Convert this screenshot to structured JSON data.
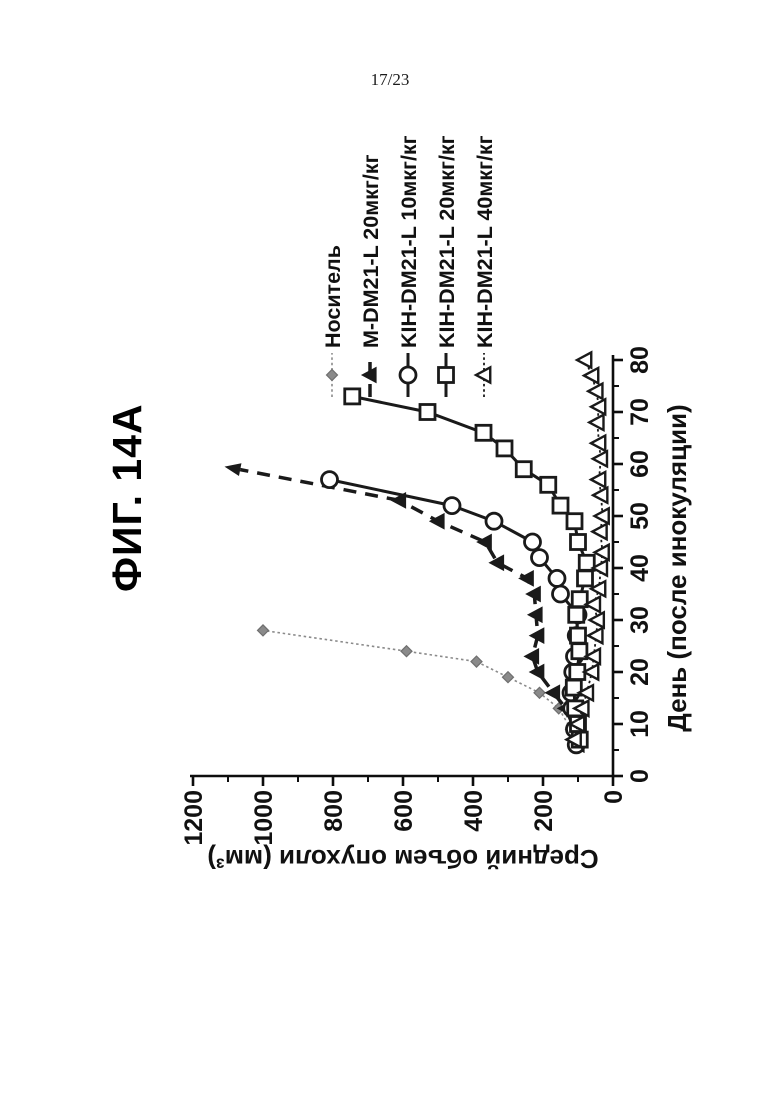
{
  "page": {
    "number": "17/23"
  },
  "figure": {
    "title": "ФИГ. 14А"
  },
  "chart_data": {
    "type": "line",
    "title": "ФИГ. 14А",
    "xlabel": "День (после инокуляции)",
    "ylabel": "Средний объем опухоли (мм³)",
    "xlim": [
      0,
      80
    ],
    "ylim": [
      0,
      1200
    ],
    "xtick_major": 10,
    "xtick_minor": 5,
    "ytick_major": 200,
    "ytick_minor": 100,
    "grid": false,
    "legend_position": "top-right",
    "orientation": "figure rotated 90 degrees counterclockwise on page",
    "series": [
      {
        "name": "Носитель",
        "marker": "diamond",
        "marker_fill": "filled",
        "color": "#8a8a8a",
        "line": "dotted",
        "line_width": 1.6,
        "x": [
          6,
          9,
          13,
          16,
          19,
          22,
          24,
          28
        ],
        "y": [
          110,
          120,
          155,
          210,
          300,
          390,
          590,
          1000
        ]
      },
      {
        "name": "M-DM21-L 20мкг/кг",
        "marker": "triangle",
        "marker_fill": "filled",
        "color": "#1a1a1a",
        "line": "dashed",
        "line_width": 3.5,
        "x": [
          6,
          9,
          13,
          16,
          20,
          23,
          27,
          31,
          35,
          38,
          41,
          45,
          49,
          53
        ],
        "y": [
          100,
          110,
          135,
          170,
          215,
          230,
          215,
          220,
          225,
          245,
          330,
          365,
          500,
          610
        ],
        "arrow_to": {
          "x": 59.5,
          "y": 1110
        }
      },
      {
        "name": "KIH-DM21-L 10мкг/кг",
        "marker": "circle",
        "marker_fill": "open",
        "color": "#1a1a1a",
        "line": "solid",
        "line_width": 3,
        "x": [
          6,
          9,
          13,
          16,
          20,
          23,
          27,
          31,
          35,
          38,
          42,
          45,
          49,
          52,
          57
        ],
        "y": [
          105,
          110,
          118,
          120,
          115,
          110,
          105,
          100,
          150,
          160,
          210,
          230,
          340,
          460,
          810
        ]
      },
      {
        "name": "KIH-DM21-L 20мкг/кг",
        "marker": "square",
        "marker_fill": "open",
        "color": "#1a1a1a",
        "line": "solid",
        "line_width": 3,
        "x": [
          7,
          10,
          13,
          17,
          20,
          24,
          27,
          31,
          34,
          38,
          41,
          45,
          49,
          52,
          56,
          59,
          63,
          66,
          70,
          73
        ],
        "y": [
          95,
          100,
          108,
          112,
          102,
          96,
          100,
          105,
          95,
          80,
          75,
          100,
          110,
          150,
          185,
          255,
          310,
          370,
          530,
          745
        ]
      },
      {
        "name": "KIH-DM21-L 40мкг/кг",
        "marker": "triangle",
        "marker_fill": "open",
        "color": "#1a1a1a",
        "line": "dotted",
        "line_width": 1.8,
        "x": [
          7,
          10,
          13,
          16,
          20,
          23,
          27,
          30,
          33,
          36,
          40,
          43,
          47,
          50,
          54,
          57,
          61,
          64,
          68,
          71,
          74,
          77,
          80
        ],
        "y": [
          110,
          100,
          88,
          75,
          60,
          55,
          48,
          44,
          55,
          40,
          35,
          30,
          36,
          30,
          34,
          40,
          35,
          40,
          45,
          40,
          48,
          60,
          80
        ]
      }
    ]
  }
}
